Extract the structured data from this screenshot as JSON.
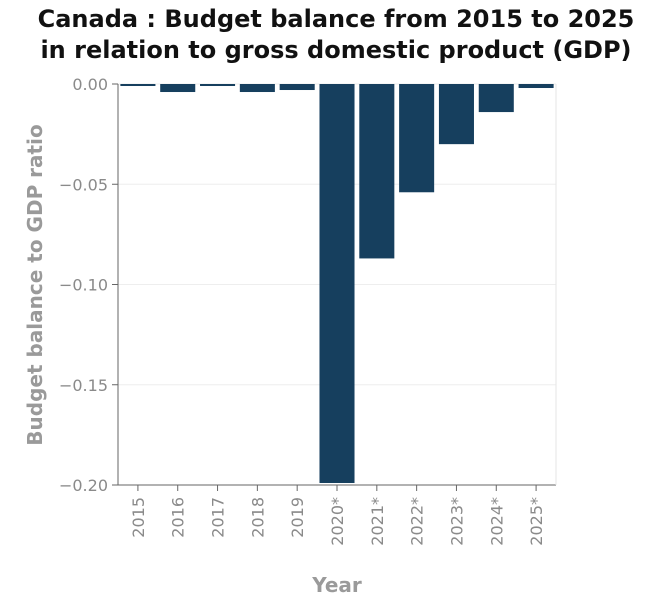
{
  "chart_data": {
    "type": "bar",
    "title": "Canada : Budget balance from 2015 to 2025 in relation to gross domestic product (GDP)",
    "title_lines": [
      "Canada : Budget balance from 2015 to 2025",
      "in relation to gross domestic product (GDP)"
    ],
    "xlabel": "Year",
    "ylabel": "Budget balance to GDP ratio",
    "categories": [
      "2015",
      "2016",
      "2017",
      "2018",
      "2019",
      "2020*",
      "2021*",
      "2022*",
      "2023*",
      "2024*",
      "2025*"
    ],
    "values": [
      -0.001,
      -0.004,
      -0.001,
      -0.004,
      -0.003,
      -0.199,
      -0.087,
      -0.054,
      -0.03,
      -0.014,
      -0.002
    ],
    "ylim": [
      -0.2,
      0
    ],
    "yticks": [
      0,
      -0.05,
      -0.1,
      -0.15,
      -0.2
    ],
    "ytick_labels": [
      "0.00",
      "−0.05",
      "−0.10",
      "−0.15",
      "−0.20"
    ],
    "grid": true,
    "bar_color": "#163f5e"
  }
}
